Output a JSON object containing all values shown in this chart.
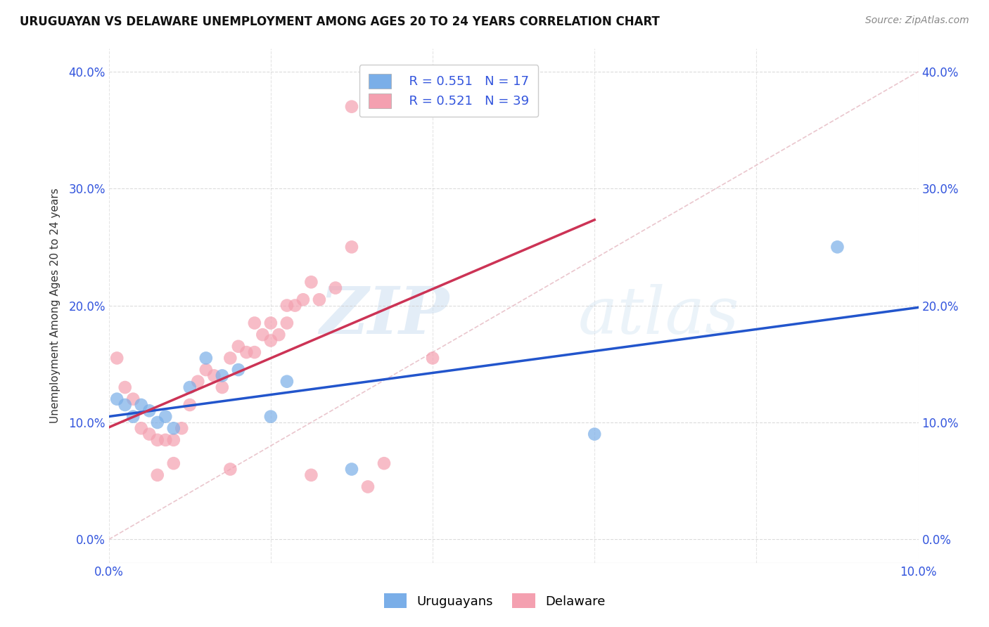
{
  "title": "URUGUAYAN VS DELAWARE UNEMPLOYMENT AMONG AGES 20 TO 24 YEARS CORRELATION CHART",
  "source": "Source: ZipAtlas.com",
  "ylabel": "Unemployment Among Ages 20 to 24 years",
  "xlim": [
    0,
    0.1
  ],
  "ylim": [
    -0.02,
    0.42
  ],
  "plot_ylim": [
    -0.02,
    0.42
  ],
  "xticks": [
    0.0,
    0.02,
    0.04,
    0.06,
    0.08,
    0.1
  ],
  "yticks": [
    0.0,
    0.1,
    0.2,
    0.3,
    0.4
  ],
  "color_blue": "#7aaee8",
  "color_pink": "#f4a0b0",
  "color_blue_line": "#2255cc",
  "color_pink_line": "#cc3355",
  "color_diag_line": "#e8c0c8",
  "color_text_blue": "#3355dd",
  "uruguayan_x": [
    0.001,
    0.002,
    0.003,
    0.004,
    0.005,
    0.006,
    0.007,
    0.008,
    0.01,
    0.012,
    0.014,
    0.016,
    0.02,
    0.022,
    0.03,
    0.06,
    0.09
  ],
  "uruguayan_y": [
    0.12,
    0.115,
    0.105,
    0.115,
    0.11,
    0.1,
    0.105,
    0.095,
    0.13,
    0.155,
    0.14,
    0.145,
    0.105,
    0.135,
    0.06,
    0.09,
    0.25
  ],
  "delaware_x": [
    0.001,
    0.002,
    0.003,
    0.004,
    0.005,
    0.006,
    0.007,
    0.008,
    0.009,
    0.01,
    0.011,
    0.012,
    0.013,
    0.014,
    0.015,
    0.016,
    0.017,
    0.018,
    0.019,
    0.02,
    0.021,
    0.022,
    0.023,
    0.024,
    0.025,
    0.018,
    0.02,
    0.022,
    0.026,
    0.028,
    0.03,
    0.032,
    0.034,
    0.025,
    0.015,
    0.008,
    0.006,
    0.03,
    0.04
  ],
  "delaware_y": [
    0.155,
    0.13,
    0.12,
    0.095,
    0.09,
    0.085,
    0.085,
    0.085,
    0.095,
    0.115,
    0.135,
    0.145,
    0.14,
    0.13,
    0.155,
    0.165,
    0.16,
    0.16,
    0.175,
    0.17,
    0.175,
    0.185,
    0.2,
    0.205,
    0.22,
    0.185,
    0.185,
    0.2,
    0.205,
    0.215,
    0.25,
    0.045,
    0.065,
    0.055,
    0.06,
    0.065,
    0.055,
    0.37,
    0.155
  ],
  "watermark_zip": "ZIP",
  "watermark_atlas": "atlas",
  "background_color": "#ffffff",
  "grid_color": "#cccccc"
}
